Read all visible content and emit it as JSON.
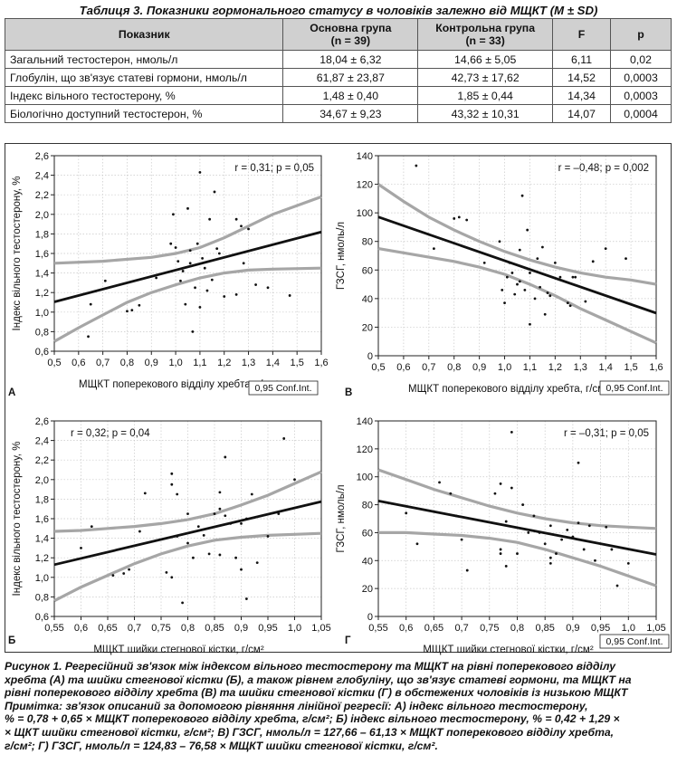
{
  "table": {
    "caption": "Таблиця 3. Показники гормонального статусу в чоловіків залежно від МЩКТ (M ± SD)",
    "headers": [
      {
        "line1": "Показник",
        "line2": ""
      },
      {
        "line1": "Основна група",
        "line2": "(n = 39)"
      },
      {
        "line1": "Контрольна група",
        "line2": "(n = 33)"
      },
      {
        "line1": "F",
        "line2": ""
      },
      {
        "line1": "p",
        "line2": ""
      }
    ],
    "rows": [
      [
        "Загальний тестостерон, нмоль/л",
        "18,04 ± 6,32",
        "14,66 ± 5,05",
        "6,11",
        "0,02"
      ],
      [
        "Глобулін, що зв'язує статеві гормони, нмоль/л",
        "61,87 ± 23,87",
        "42,73 ± 17,62",
        "14,52",
        "0,0003"
      ],
      [
        "Індекс вільного тестостерону, %",
        "1,48 ± 0,40",
        "1,85 ± 0,44",
        "14,34",
        "0,0003"
      ],
      [
        "Біологічно доступний тестостерон, %",
        "34,67 ± 9,23",
        "43,32 ± 10,31",
        "14,07",
        "0,0004"
      ]
    ]
  },
  "chart_data": [
    {
      "panel": "А",
      "type": "scatter",
      "xlabel": "МЩКТ поперекового відділу хребта, г/см²",
      "ylabel": "Індекс вільного тестостерону, %",
      "xlim": [
        0.5,
        1.6
      ],
      "ylim": [
        0.6,
        2.6
      ],
      "xticks": [
        0.5,
        0.6,
        0.7,
        0.8,
        0.9,
        1.0,
        1.1,
        1.2,
        1.3,
        1.4,
        1.5,
        1.6
      ],
      "yticks": [
        0.6,
        0.8,
        1.0,
        1.2,
        1.4,
        1.6,
        1.8,
        2.0,
        2.2,
        2.4,
        2.6
      ],
      "tick_decimals": 1,
      "annotation": "r = 0,31; p = 0,05",
      "legend": "0,95 Conf.Int.",
      "regression": {
        "intercept": 0.78,
        "slope": 0.65
      },
      "ci_upper": [
        [
          0.5,
          1.5
        ],
        [
          0.7,
          1.52
        ],
        [
          0.9,
          1.56
        ],
        [
          1.0,
          1.6
        ],
        [
          1.1,
          1.66
        ],
        [
          1.2,
          1.76
        ],
        [
          1.3,
          1.88
        ],
        [
          1.4,
          2.0
        ],
        [
          1.5,
          2.09
        ],
        [
          1.6,
          2.18
        ]
      ],
      "ci_lower": [
        [
          0.5,
          0.7
        ],
        [
          0.6,
          0.84
        ],
        [
          0.7,
          0.97
        ],
        [
          0.8,
          1.1
        ],
        [
          0.9,
          1.2
        ],
        [
          1.0,
          1.28
        ],
        [
          1.1,
          1.35
        ],
        [
          1.2,
          1.4
        ],
        [
          1.3,
          1.43
        ],
        [
          1.4,
          1.44
        ],
        [
          1.6,
          1.45
        ]
      ],
      "points": [
        [
          0.64,
          0.75
        ],
        [
          0.65,
          1.08
        ],
        [
          0.71,
          1.32
        ],
        [
          0.8,
          1.01
        ],
        [
          0.82,
          1.02
        ],
        [
          0.85,
          1.07
        ],
        [
          0.92,
          1.35
        ],
        [
          0.98,
          1.7
        ],
        [
          0.99,
          2.0
        ],
        [
          1.0,
          1.66
        ],
        [
          1.01,
          1.52
        ],
        [
          1.02,
          1.32
        ],
        [
          1.03,
          1.42
        ],
        [
          1.04,
          1.08
        ],
        [
          1.05,
          2.06
        ],
        [
          1.06,
          1.63
        ],
        [
          1.06,
          1.5
        ],
        [
          1.07,
          0.8
        ],
        [
          1.08,
          1.25
        ],
        [
          1.09,
          1.7
        ],
        [
          1.1,
          2.43
        ],
        [
          1.1,
          1.05
        ],
        [
          1.11,
          1.55
        ],
        [
          1.12,
          1.45
        ],
        [
          1.13,
          1.22
        ],
        [
          1.14,
          1.95
        ],
        [
          1.15,
          1.33
        ],
        [
          1.16,
          2.23
        ],
        [
          1.17,
          1.65
        ],
        [
          1.18,
          1.6
        ],
        [
          1.2,
          1.16
        ],
        [
          1.25,
          1.18
        ],
        [
          1.25,
          1.95
        ],
        [
          1.27,
          1.88
        ],
        [
          1.28,
          1.5
        ],
        [
          1.3,
          1.85
        ],
        [
          1.33,
          1.28
        ],
        [
          1.38,
          1.25
        ],
        [
          1.47,
          1.17
        ]
      ]
    },
    {
      "panel": "В",
      "type": "scatter",
      "xlabel": "МЩКТ поперекового відділу хребта, г/см²",
      "ylabel": "ГЗСГ, нмоль/л",
      "xlim": [
        0.5,
        1.6
      ],
      "ylim": [
        0,
        140
      ],
      "xticks": [
        0.5,
        0.6,
        0.7,
        0.8,
        0.9,
        1.0,
        1.1,
        1.2,
        1.3,
        1.4,
        1.5,
        1.6
      ],
      "yticks": [
        0,
        20,
        40,
        60,
        80,
        100,
        120,
        140
      ],
      "tick_decimals": 0,
      "annotation": "r = –0,48; p = 0,002",
      "legend": "0,95 Conf.Int.",
      "regression": {
        "intercept": 127.66,
        "slope": -61.13
      },
      "ci_upper": [
        [
          0.5,
          120
        ],
        [
          0.6,
          108
        ],
        [
          0.7,
          97
        ],
        [
          0.8,
          88
        ],
        [
          0.9,
          80
        ],
        [
          1.0,
          73
        ],
        [
          1.1,
          67
        ],
        [
          1.2,
          62
        ],
        [
          1.3,
          58
        ],
        [
          1.4,
          55
        ],
        [
          1.5,
          53
        ],
        [
          1.6,
          50
        ]
      ],
      "ci_lower": [
        [
          0.5,
          75
        ],
        [
          0.6,
          72
        ],
        [
          0.7,
          69
        ],
        [
          0.8,
          66
        ],
        [
          0.9,
          62
        ],
        [
          1.0,
          57
        ],
        [
          1.1,
          50
        ],
        [
          1.2,
          42
        ],
        [
          1.3,
          33
        ],
        [
          1.4,
          25
        ],
        [
          1.5,
          17
        ],
        [
          1.6,
          9
        ]
      ],
      "points": [
        [
          0.65,
          133
        ],
        [
          0.72,
          75
        ],
        [
          0.8,
          96
        ],
        [
          0.82,
          97
        ],
        [
          0.85,
          95
        ],
        [
          0.92,
          65
        ],
        [
          0.98,
          80
        ],
        [
          0.99,
          46
        ],
        [
          1.0,
          37
        ],
        [
          1.01,
          55
        ],
        [
          1.02,
          65
        ],
        [
          1.03,
          58
        ],
        [
          1.04,
          43
        ],
        [
          1.05,
          50
        ],
        [
          1.06,
          52
        ],
        [
          1.06,
          74
        ],
        [
          1.07,
          112
        ],
        [
          1.08,
          46
        ],
        [
          1.09,
          88
        ],
        [
          1.1,
          22
        ],
        [
          1.1,
          58
        ],
        [
          1.12,
          40
        ],
        [
          1.13,
          68
        ],
        [
          1.14,
          48
        ],
        [
          1.15,
          76
        ],
        [
          1.16,
          29
        ],
        [
          1.17,
          44
        ],
        [
          1.18,
          42
        ],
        [
          1.2,
          65
        ],
        [
          1.22,
          55
        ],
        [
          1.25,
          37
        ],
        [
          1.26,
          35
        ],
        [
          1.27,
          55
        ],
        [
          1.28,
          55
        ],
        [
          1.32,
          38
        ],
        [
          1.35,
          66
        ],
        [
          1.4,
          75
        ],
        [
          1.48,
          68
        ]
      ]
    },
    {
      "panel": "Б",
      "type": "scatter",
      "xlabel": "МЩКТ шийки стегнової кістки, г/см²",
      "ylabel": "Індекс вільного тестостерону, %",
      "xlim": [
        0.55,
        1.05
      ],
      "ylim": [
        0.6,
        2.6
      ],
      "xticks": [
        0.55,
        0.6,
        0.65,
        0.7,
        0.75,
        0.8,
        0.85,
        0.9,
        0.95,
        1.0,
        1.05
      ],
      "yticks": [
        0.6,
        0.8,
        1.0,
        1.2,
        1.4,
        1.6,
        1.8,
        2.0,
        2.2,
        2.4,
        2.6
      ],
      "tick_decimals": 1,
      "annotation": "r = 0,32; p = 0,04",
      "legend": "",
      "regression": {
        "intercept": 0.42,
        "slope": 1.29
      },
      "ci_upper": [
        [
          0.55,
          1.47
        ],
        [
          0.6,
          1.48
        ],
        [
          0.65,
          1.5
        ],
        [
          0.7,
          1.52
        ],
        [
          0.75,
          1.55
        ],
        [
          0.8,
          1.59
        ],
        [
          0.85,
          1.65
        ],
        [
          0.9,
          1.74
        ],
        [
          0.95,
          1.84
        ],
        [
          1.0,
          1.96
        ],
        [
          1.05,
          2.08
        ]
      ],
      "ci_lower": [
        [
          0.55,
          0.76
        ],
        [
          0.6,
          0.9
        ],
        [
          0.65,
          1.02
        ],
        [
          0.7,
          1.14
        ],
        [
          0.75,
          1.24
        ],
        [
          0.8,
          1.32
        ],
        [
          0.85,
          1.38
        ],
        [
          0.9,
          1.41
        ],
        [
          0.95,
          1.43
        ],
        [
          1.0,
          1.44
        ],
        [
          1.05,
          1.45
        ]
      ],
      "points": [
        [
          0.6,
          1.3
        ],
        [
          0.62,
          1.52
        ],
        [
          0.66,
          1.02
        ],
        [
          0.68,
          1.04
        ],
        [
          0.69,
          1.08
        ],
        [
          0.71,
          1.47
        ],
        [
          0.72,
          1.86
        ],
        [
          0.76,
          1.05
        ],
        [
          0.77,
          1.0
        ],
        [
          0.77,
          1.95
        ],
        [
          0.77,
          2.06
        ],
        [
          0.78,
          1.85
        ],
        [
          0.78,
          1.42
        ],
        [
          0.79,
          0.74
        ],
        [
          0.8,
          1.35
        ],
        [
          0.8,
          1.65
        ],
        [
          0.81,
          1.2
        ],
        [
          0.82,
          1.52
        ],
        [
          0.83,
          1.43
        ],
        [
          0.84,
          1.24
        ],
        [
          0.85,
          1.65
        ],
        [
          0.86,
          1.23
        ],
        [
          0.86,
          1.87
        ],
        [
          0.86,
          1.7
        ],
        [
          0.87,
          2.23
        ],
        [
          0.87,
          1.63
        ],
        [
          0.88,
          1.55
        ],
        [
          0.89,
          1.2
        ],
        [
          0.9,
          1.08
        ],
        [
          0.9,
          1.55
        ],
        [
          0.91,
          0.78
        ],
        [
          0.91,
          1.6
        ],
        [
          0.92,
          1.85
        ],
        [
          0.93,
          1.15
        ],
        [
          0.95,
          1.42
        ],
        [
          0.97,
          1.65
        ],
        [
          0.98,
          2.42
        ],
        [
          1.0,
          2.0
        ]
      ]
    },
    {
      "panel": "Г",
      "type": "scatter",
      "xlabel": "МЩКТ шийки стегнової кістки, г/см²",
      "ylabel": "ГЗСГ, нмоль/л",
      "xlim": [
        0.55,
        1.05
      ],
      "ylim": [
        0,
        140
      ],
      "xticks": [
        0.55,
        0.6,
        0.65,
        0.7,
        0.75,
        0.8,
        0.85,
        0.9,
        0.95,
        1.0,
        1.05
      ],
      "yticks": [
        0,
        20,
        40,
        60,
        80,
        100,
        120,
        140
      ],
      "tick_decimals": 0,
      "annotation": "r = –0,31; p = 0,05",
      "legend": "0,95 Conf.Int.",
      "regression": {
        "intercept": 124.83,
        "slope": -76.58
      },
      "ci_upper": [
        [
          0.55,
          105
        ],
        [
          0.6,
          98
        ],
        [
          0.65,
          91
        ],
        [
          0.7,
          85
        ],
        [
          0.75,
          79
        ],
        [
          0.8,
          74
        ],
        [
          0.85,
          70
        ],
        [
          0.9,
          67
        ],
        [
          0.95,
          65
        ],
        [
          1.0,
          64
        ],
        [
          1.05,
          63
        ]
      ],
      "ci_lower": [
        [
          0.55,
          60
        ],
        [
          0.6,
          60
        ],
        [
          0.65,
          59
        ],
        [
          0.7,
          58
        ],
        [
          0.75,
          56
        ],
        [
          0.8,
          53
        ],
        [
          0.85,
          48
        ],
        [
          0.9,
          42
        ],
        [
          0.95,
          36
        ],
        [
          1.0,
          29
        ],
        [
          1.05,
          22
        ]
      ],
      "points": [
        [
          0.6,
          74
        ],
        [
          0.62,
          52
        ],
        [
          0.66,
          96
        ],
        [
          0.68,
          88
        ],
        [
          0.69,
          72
        ],
        [
          0.7,
          55
        ],
        [
          0.71,
          33
        ],
        [
          0.76,
          88
        ],
        [
          0.77,
          95
        ],
        [
          0.77,
          45
        ],
        [
          0.77,
          48
        ],
        [
          0.78,
          36
        ],
        [
          0.78,
          68
        ],
        [
          0.79,
          132
        ],
        [
          0.79,
          92
        ],
        [
          0.8,
          45
        ],
        [
          0.81,
          80
        ],
        [
          0.82,
          60
        ],
        [
          0.83,
          72
        ],
        [
          0.84,
          60
        ],
        [
          0.85,
          52
        ],
        [
          0.86,
          42
        ],
        [
          0.86,
          38
        ],
        [
          0.86,
          65
        ],
        [
          0.87,
          45
        ],
        [
          0.88,
          55
        ],
        [
          0.89,
          62
        ],
        [
          0.9,
          57
        ],
        [
          0.91,
          110
        ],
        [
          0.91,
          67
        ],
        [
          0.92,
          48
        ],
        [
          0.93,
          65
        ],
        [
          0.94,
          40
        ],
        [
          0.96,
          64
        ],
        [
          0.97,
          48
        ],
        [
          0.98,
          22
        ],
        [
          1.0,
          38
        ]
      ]
    }
  ],
  "figure_caption": {
    "line1": "Рисунок 1. Регресійний зв'язок між індексом вільного тестостерону та МЩКТ на рівні поперекового відділу",
    "line2": "хребта (А) та шийки стегнової кістки (Б), а також рівнем глобуліну, що зв'язує статеві гормони, та МЩКТ на",
    "line3": "рівні поперекового відділу хребта (В) та шийки стегнової кістки (Г) в обстежених чоловіків із низькою МЩКТ",
    "line4": "Примітка: зв'язок описаний за допомогою рівняння лінійної регресії: А) індекс вільного тестостерону,",
    "line5": "% = 0,78 + 0,65 × МЩКТ поперекового відділу хребта, г/см²; Б) індекс вільного тестостерону, % = 0,42 + 1,29 ×",
    "line6": "× ЩКТ шийки стегнової кістки, г/см²; В) ГЗСГ, нмоль/л = 127,66 – 61,13 × МЩКТ поперекового відділу хребта,",
    "line7": "г/см²; Г) ГЗСГ, нмоль/л = 124,83 – 76,58 × МЩКТ шийки стегнової кістки, г/см²."
  }
}
